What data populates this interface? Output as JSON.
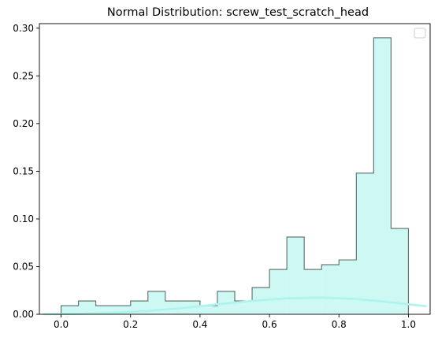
{
  "chart_data": {
    "type": "bar",
    "title": "Normal Distribution: screw_test_scratch_head",
    "xlabel": "",
    "ylabel": "",
    "xlim": [
      -0.0625,
      1.0625
    ],
    "ylim": [
      0,
      0.3048
    ],
    "x_ticks": [
      0.0,
      0.2,
      0.4,
      0.6,
      0.8,
      1.0
    ],
    "x_tick_labels": [
      "0.0",
      "0.2",
      "0.4",
      "0.6",
      "0.8",
      "1.0"
    ],
    "y_ticks": [
      0.0,
      0.05,
      0.1,
      0.15,
      0.2,
      0.25,
      0.3
    ],
    "y_tick_labels": [
      "0.00",
      "0.05",
      "0.10",
      "0.15",
      "0.20",
      "0.25",
      "0.30"
    ],
    "grid": false,
    "legend": {
      "location": "top-right",
      "entries": []
    },
    "histogram": {
      "bin_edges": [
        0.0,
        0.05,
        0.1,
        0.15,
        0.2,
        0.25,
        0.3,
        0.35,
        0.4,
        0.45,
        0.5,
        0.55,
        0.6,
        0.65,
        0.7,
        0.75,
        0.8,
        0.85,
        0.9,
        0.95,
        1.0
      ],
      "values": [
        0.009,
        0.014,
        0.009,
        0.009,
        0.014,
        0.024,
        0.014,
        0.014,
        0.009,
        0.024,
        0.014,
        0.028,
        0.047,
        0.081,
        0.047,
        0.052,
        0.057,
        0.148,
        0.29,
        0.09
      ],
      "fill_color": "#cdf8f3",
      "edge_color": "#5a6b69"
    },
    "density_curve": {
      "color": "#aef3ec",
      "x": [
        -0.05,
        0.05,
        0.15,
        0.25,
        0.35,
        0.45,
        0.55,
        0.65,
        0.75,
        0.85,
        0.95,
        1.05
      ],
      "y": [
        0.0,
        0.0005,
        0.0015,
        0.0035,
        0.0065,
        0.0105,
        0.014,
        0.0168,
        0.0175,
        0.016,
        0.0125,
        0.0085
      ]
    }
  }
}
